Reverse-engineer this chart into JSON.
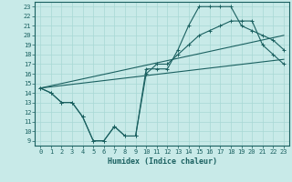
{
  "xlabel": "Humidex (Indice chaleur)",
  "bg_color": "#c8eae8",
  "grid_color": "#a8d8d4",
  "line_color": "#1a6060",
  "xlim": [
    -0.5,
    23.5
  ],
  "ylim": [
    8.5,
    23.5
  ],
  "xticks": [
    0,
    1,
    2,
    3,
    4,
    5,
    6,
    7,
    8,
    9,
    10,
    11,
    12,
    13,
    14,
    15,
    16,
    17,
    18,
    19,
    20,
    21,
    22,
    23
  ],
  "yticks": [
    9,
    10,
    11,
    12,
    13,
    14,
    15,
    16,
    17,
    18,
    19,
    20,
    21,
    22,
    23
  ],
  "line1_x": [
    0,
    1,
    2,
    3,
    4,
    5,
    6,
    7,
    8,
    9,
    10,
    11,
    12,
    13,
    14,
    15,
    16,
    17,
    18,
    19,
    20,
    21,
    22,
    23
  ],
  "line1_y": [
    14.5,
    14.0,
    13.0,
    13.0,
    11.5,
    9.0,
    9.0,
    10.5,
    9.5,
    9.5,
    16.5,
    16.5,
    16.5,
    18.5,
    21.0,
    23.0,
    23.0,
    23.0,
    23.0,
    21.0,
    20.5,
    20.0,
    19.5,
    18.5
  ],
  "line2_x": [
    0,
    1,
    2,
    3,
    4,
    5,
    6,
    7,
    8,
    9,
    10,
    11,
    12,
    13,
    14,
    15,
    16,
    17,
    18,
    19,
    20,
    21,
    22,
    23
  ],
  "line2_y": [
    14.5,
    14.0,
    13.0,
    13.0,
    11.5,
    9.0,
    9.0,
    10.5,
    9.5,
    9.5,
    16.0,
    17.0,
    17.0,
    18.0,
    19.0,
    20.0,
    20.5,
    21.0,
    21.5,
    21.5,
    21.5,
    19.0,
    18.0,
    17.0
  ],
  "line3_x": [
    0,
    23
  ],
  "line3_y": [
    14.5,
    17.5
  ],
  "line4_x": [
    0,
    23
  ],
  "line4_y": [
    14.5,
    20.0
  ]
}
